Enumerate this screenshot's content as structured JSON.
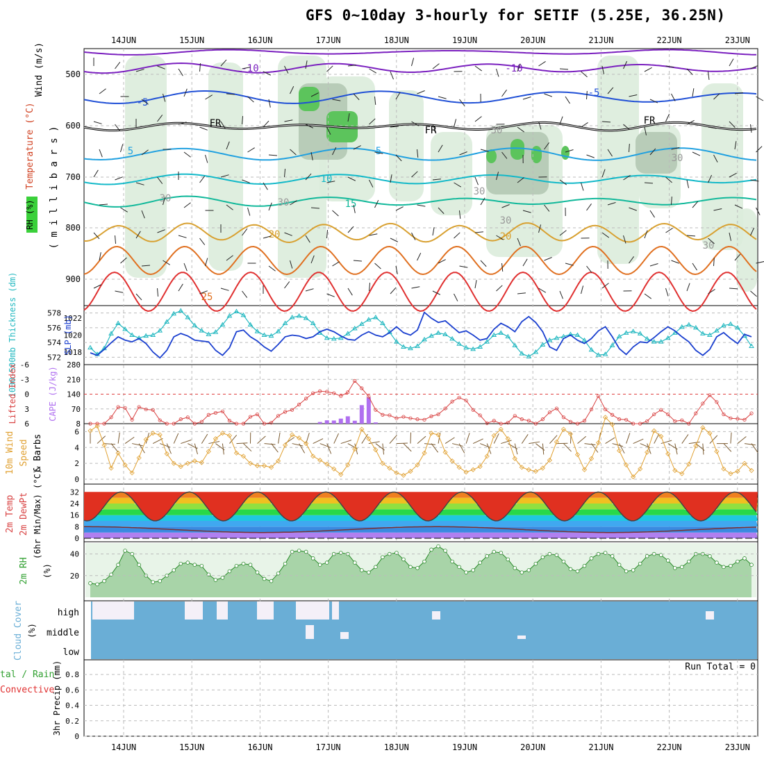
{
  "title": "GFS 0~10day 3-hourly for SETIF (5.25E, 36.25N)",
  "dates": [
    "14JUN",
    "15JUN",
    "16JUN",
    "17JUN",
    "18JUN",
    "19JUN",
    "20JUN",
    "21JUN",
    "22JUN",
    "23JUN"
  ],
  "colors": {
    "frame": "#000000",
    "grid": "#aaaaaa",
    "temp_cold": "#7a1fbf",
    "temp_mid": "#1f4fd6",
    "temp_5": "#1fa0e0",
    "temp_10": "#10b8c8",
    "temp_15": "#10b89a",
    "temp_20": "#d8a030",
    "temp_hot": "#e07020",
    "temp_25": "#e03030",
    "thickness": "#22b8c0",
    "slp": "#1a3fcf",
    "lifted": "#d84040",
    "cape": "#b070f0",
    "wind": "#e0a030",
    "rh": "#30a030",
    "cloud": "#6aaed6"
  },
  "panels": {
    "upper": {
      "ylabel_wind": "Wind (m/s)",
      "ylabel_temp": "Temperature (°C)",
      "ylabel_rh": "RH (%)",
      "ylabel_mb": "( m i l l i b a r s )",
      "yticks": [
        "500",
        "600",
        "700",
        "800",
        "900"
      ],
      "contour_labels": [
        "-10",
        "-10",
        "-5",
        "-5",
        "FR",
        "FR",
        "FR",
        "5",
        "5",
        "10",
        "15",
        "20",
        "20",
        "25",
        "30",
        "30",
        "30",
        "30",
        "30",
        "30",
        "30"
      ]
    },
    "thickness": {
      "ylabel_left": "1000-500mb Thickness (dm)",
      "ylabel_right": "SLP (mb)",
      "yticks_left": [
        "578",
        "576",
        "574",
        "572"
      ],
      "yticks_right": [
        "1022",
        "1020",
        "1018"
      ]
    },
    "cape": {
      "ylabel_left": "Lifted Index",
      "ylabel_right": "CAPE (J/kg)",
      "yticks_left": [
        "-6",
        "-3",
        "0",
        "3",
        "6"
      ],
      "yticks_right": [
        "280",
        "210",
        "140",
        "70",
        "8"
      ]
    },
    "wind10": {
      "ylabel": "10m Wind Speed & Barbs (m/s)",
      "ylabel_a": "10m Wind",
      "ylabel_b": "Speed",
      "ylabel_c": "& Barbs",
      "yticks": [
        "6",
        "4",
        "2",
        "0"
      ]
    },
    "temp2m": {
      "ylabel_a": "2m Temp",
      "ylabel_b": "2m DewPt",
      "ylabel_c": "(6hr Min/Max) (°C)",
      "yticks": [
        "32",
        "24",
        "16",
        "8",
        "0"
      ]
    },
    "rh2m": {
      "ylabel": "2m RH",
      "unit": "(%)",
      "yticks": [
        "40",
        "20"
      ]
    },
    "cloud": {
      "ylabel": "Cloud Cover",
      "unit": "(%)",
      "levels": [
        "high",
        "middle",
        "low"
      ]
    },
    "precip": {
      "ylabel_a": "tal / Rain",
      "ylabel_b": "Convective",
      "ylabel_c": "3hr Precip (mm)",
      "run_total": "Run Total = 0",
      "yticks": [
        "0.8",
        "0.6",
        "0.4",
        "0.2",
        "0"
      ]
    }
  },
  "chart_data": [
    {
      "type": "line",
      "name": "thickness",
      "unit": "dm",
      "ylim": [
        571,
        579
      ],
      "values": [
        573.3,
        572.4,
        573.2,
        575.2,
        576.6,
        575.8,
        575.0,
        574.6,
        574.9,
        575.0,
        575.6,
        576.8,
        577.9,
        578.3,
        577.4,
        576.3,
        575.6,
        575.1,
        575.4,
        576.4,
        577.6,
        578.2,
        577.7,
        576.4,
        575.5,
        575.0,
        574.9,
        575.5,
        576.6,
        577.4,
        577.6,
        577.3,
        576.6,
        575.3,
        574.6,
        574.5,
        574.6,
        575.2,
        575.9,
        576.5,
        577.1,
        577.4,
        576.6,
        575.4,
        574.1,
        573.4,
        573.2,
        573.5,
        574.4,
        574.9,
        575.3,
        575.1,
        574.5,
        573.8,
        573.3,
        573.1,
        573.4,
        574.1,
        575.0,
        575.3,
        574.8,
        573.6,
        572.5,
        572.1,
        572.7,
        573.7,
        574.3,
        574.6,
        574.8,
        575.1,
        575.0,
        574.3,
        573.0,
        572.3,
        572.4,
        573.6,
        574.8,
        575.3,
        575.5,
        575.2,
        574.5,
        574.1,
        574.1,
        574.6,
        575.3,
        576.1,
        576.4,
        576.0,
        575.2,
        575.0,
        575.6,
        576.3,
        576.5,
        576.0,
        574.9,
        573.5
      ]
    },
    {
      "type": "line",
      "name": "SLP",
      "unit": "mb",
      "ylim": [
        1016.5,
        1023.5
      ],
      "values": [
        1017.9,
        1017.6,
        1018.3,
        1019.1,
        1019.8,
        1019.4,
        1019.2,
        1019.6,
        1019.0,
        1018.0,
        1017.3,
        1018.2,
        1019.8,
        1020.2,
        1019.9,
        1019.4,
        1019.3,
        1019.2,
        1018.2,
        1017.6,
        1018.5,
        1020.4,
        1020.6,
        1019.8,
        1019.3,
        1018.6,
        1018.1,
        1018.9,
        1019.8,
        1020.0,
        1019.9,
        1019.6,
        1019.8,
        1020.4,
        1020.7,
        1020.4,
        1019.9,
        1019.5,
        1019.4,
        1020.0,
        1020.4,
        1020.0,
        1019.8,
        1020.3,
        1021.0,
        1020.3,
        1020.0,
        1020.6,
        1022.7,
        1022.0,
        1021.5,
        1021.7,
        1021.0,
        1020.3,
        1020.5,
        1020.0,
        1019.4,
        1019.6,
        1020.7,
        1021.4,
        1021.0,
        1020.4,
        1021.6,
        1022.2,
        1021.5,
        1020.4,
        1018.6,
        1018.2,
        1019.6,
        1020.0,
        1019.4,
        1019.0,
        1019.6,
        1020.5,
        1021.0,
        1019.8,
        1018.4,
        1017.7,
        1018.6,
        1019.2,
        1019.1,
        1019.7,
        1020.4,
        1021.0,
        1020.5,
        1019.8,
        1019.2,
        1018.2,
        1017.6,
        1018.3,
        1019.8,
        1020.3,
        1019.6,
        1019.0,
        1020.1,
        1019.8
      ]
    },
    {
      "type": "line",
      "name": "Lifted Index",
      "unit": "",
      "ylim": [
        6,
        -6
      ],
      "values": [
        6,
        6,
        6,
        4.7,
        2.6,
        2.8,
        5.2,
        2.6,
        3.1,
        3.2,
        5.3,
        6,
        6,
        5.1,
        4.7,
        6,
        5.6,
        4.2,
        3.8,
        3.5,
        5.4,
        6,
        6,
        4.6,
        4.1,
        6,
        5.8,
        4.4,
        3.6,
        3.2,
        2.1,
        0.9,
        -0.2,
        -0.6,
        -0.5,
        -0.2,
        0.4,
        -0.4,
        -2.7,
        -1.2,
        0.5,
        3.2,
        4.2,
        4.3,
        4.9,
        4.6,
        4.9,
        5.1,
        5.2,
        4.5,
        4.1,
        2.9,
        1.5,
        0.7,
        1.3,
        3.2,
        4.3,
        5.9,
        5.4,
        6,
        5.8,
        4.4,
        5.1,
        5.4,
        6,
        5.1,
        3.7,
        2.9,
        4.7,
        5.6,
        6,
        5.4,
        3.1,
        0.4,
        3.1,
        4.2,
        5.1,
        5.2,
        6,
        6,
        5.5,
        4.1,
        3.2,
        4.1,
        5.5,
        5.3,
        6,
        3.9,
        1.9,
        0.2,
        1.6,
        4.1,
        4.9,
        5.0,
        5.2,
        3.9
      ]
    },
    {
      "type": "bar",
      "name": "CAPE",
      "unit": "J/kg",
      "ylim": [
        0,
        280
      ],
      "values": [
        0,
        0,
        0,
        0,
        0,
        0,
        0,
        0,
        0,
        0,
        0,
        0,
        0,
        0,
        0,
        0,
        0,
        0,
        0,
        0,
        0,
        0,
        0,
        0,
        0,
        0,
        0,
        0,
        0,
        0,
        0,
        0,
        0,
        8,
        16,
        15,
        24,
        35,
        14,
        88,
        125,
        6,
        0,
        0,
        0,
        0,
        0,
        0,
        0,
        0,
        0,
        0,
        0,
        0,
        0,
        0,
        0,
        0,
        0,
        0,
        0,
        0,
        0,
        0,
        0,
        0,
        0,
        0,
        0,
        0,
        0,
        0,
        0,
        0,
        0,
        0,
        0,
        0,
        0,
        0,
        0,
        0,
        0,
        0,
        0,
        0,
        0,
        0,
        0,
        0,
        0,
        0,
        0,
        0,
        0,
        0
      ]
    },
    {
      "type": "line",
      "name": "10m Wind Speed",
      "unit": "m/s",
      "ylim": [
        0,
        7
      ],
      "values": [
        6.1,
        6.7,
        4.3,
        1.4,
        3.3,
        1.8,
        0.8,
        2.7,
        5.0,
        5.8,
        5.6,
        3.2,
        2.0,
        1.6,
        2.0,
        2.3,
        2.1,
        3.5,
        5.1,
        5.8,
        5.5,
        3.3,
        2.9,
        2.0,
        1.7,
        1.7,
        1.5,
        2.3,
        4.3,
        5.6,
        5.2,
        4.5,
        2.9,
        2.4,
        1.9,
        1.3,
        0.6,
        1.8,
        3.8,
        6.3,
        5.1,
        3.7,
        2.0,
        1.4,
        0.8,
        0.5,
        1.0,
        1.8,
        3.3,
        5.8,
        5.6,
        3.4,
        2.3,
        1.5,
        0.9,
        1.2,
        1.6,
        2.9,
        5.5,
        6.3,
        5.1,
        2.6,
        1.5,
        1.2,
        1.0,
        1.4,
        2.4,
        4.7,
        6.3,
        5.7,
        3.1,
        1.2,
        2.6,
        4.6,
        7.8,
        6.9,
        3.6,
        1.8,
        0.3,
        1.3,
        3.4,
        6.1,
        5.4,
        3.2,
        1.1,
        0.7,
        1.9,
        4.2,
        6.5,
        5.8,
        3.5,
        1.3,
        0.7,
        1.0,
        2.0,
        1.1
      ]
    },
    {
      "type": "area",
      "name": "2m RH",
      "unit": "%",
      "ylim": [
        0,
        50
      ],
      "values": [
        13,
        12,
        15,
        21,
        30,
        43,
        40,
        30,
        20,
        14,
        15,
        20,
        25,
        31,
        32,
        30,
        29,
        21,
        16,
        18,
        24,
        29,
        31,
        30,
        23,
        17,
        15,
        22,
        31,
        42,
        43,
        42,
        36,
        30,
        32,
        40,
        41,
        40,
        32,
        25,
        23,
        28,
        37,
        40,
        41,
        35,
        28,
        27,
        33,
        44,
        47,
        43,
        33,
        28,
        23,
        25,
        32,
        38,
        42,
        41,
        35,
        27,
        23,
        25,
        31,
        37,
        40,
        39,
        33,
        26,
        24,
        29,
        36,
        40,
        41,
        38,
        30,
        24,
        25,
        31,
        38,
        40,
        39,
        34,
        27,
        28,
        33,
        40,
        40,
        38,
        32,
        28,
        29,
        33,
        36,
        30
      ]
    }
  ]
}
